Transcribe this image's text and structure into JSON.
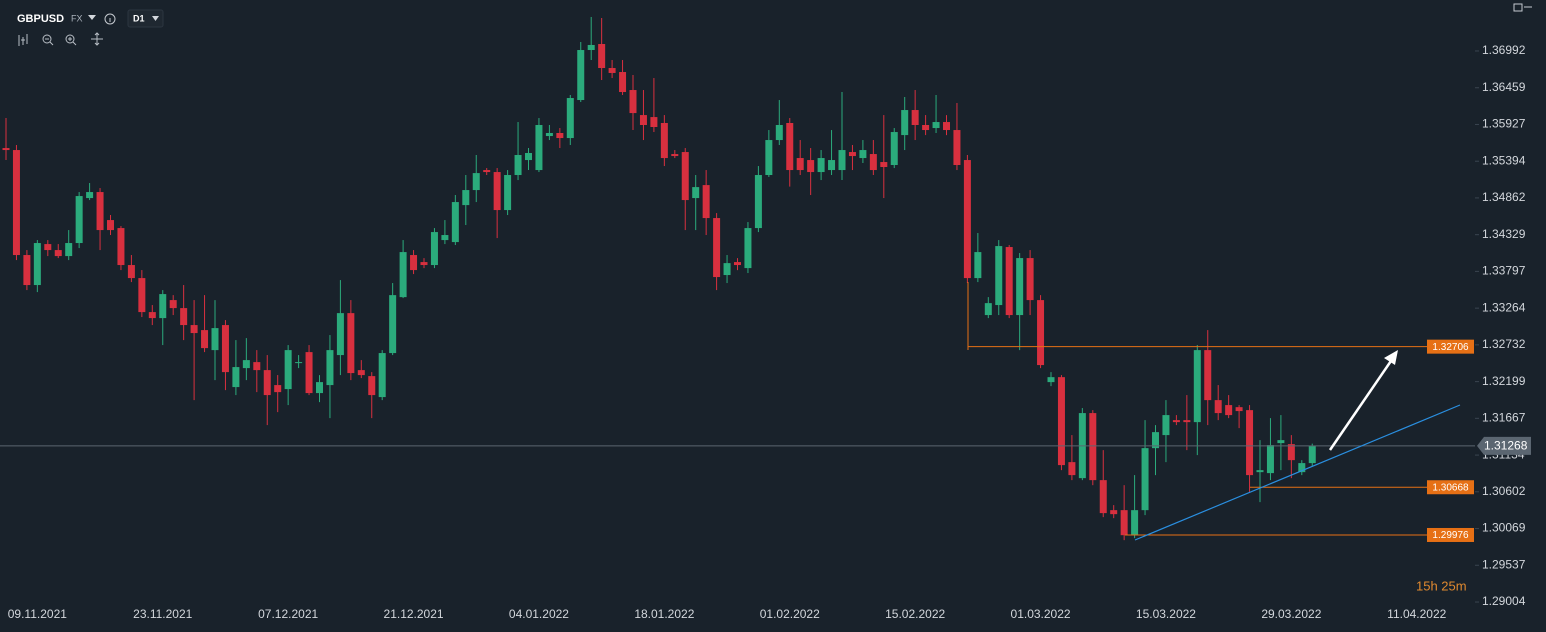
{
  "header": {
    "symbol": "GBPUSD",
    "market": "FX",
    "timeframe": "D1"
  },
  "chart_data": {
    "type": "candlestick",
    "categories": [
      null,
      null,
      null,
      "09.11.2021",
      null,
      null,
      null,
      null,
      null,
      null,
      null,
      null,
      null,
      null,
      null,
      "23.11.2021",
      null,
      null,
      null,
      null,
      null,
      null,
      null,
      null,
      null,
      null,
      null,
      "07.12.2021",
      null,
      null,
      null,
      null,
      null,
      null,
      null,
      null,
      null,
      null,
      null,
      "21.12.2021",
      null,
      null,
      null,
      null,
      null,
      null,
      null,
      null,
      null,
      null,
      null,
      "04.01.2022",
      null,
      null,
      null,
      null,
      null,
      null,
      null,
      null,
      null,
      null,
      null,
      "18.01.2022",
      null,
      null,
      null,
      null,
      null,
      null,
      null,
      null,
      null,
      null,
      null,
      "01.02.2022",
      null,
      null,
      null,
      null,
      null,
      null,
      null,
      null,
      null,
      null,
      null,
      "15.02.2022",
      null,
      null,
      null,
      null,
      null,
      null,
      null,
      null,
      null,
      null,
      null,
      "01.03.2022",
      null,
      null,
      null,
      null,
      null,
      null,
      null,
      null,
      null,
      null,
      null,
      "15.03.2022",
      null,
      null,
      null,
      null,
      null,
      null,
      null,
      null,
      null,
      null,
      null,
      "29.03.2022",
      null,
      null,
      null,
      null,
      null,
      null,
      null,
      null,
      null,
      null,
      null,
      "11.04.2022"
    ],
    "open": [
      1.35585,
      1.35556,
      1.34034,
      1.33599,
      1.34193,
      1.34106,
      1.34019,
      1.34208,
      1.3486,
      1.34947,
      1.34541,
      1.34425,
      1.33889,
      1.337,
      1.33207,
      1.3312,
      1.33381,
      1.33265,
      1.33019,
      1.32946,
      1.32656,
      1.33019,
      1.3212,
      1.32395,
      1.32482,
      1.32366,
      1.32149,
      1.32091,
      1.32468,
      1.32627,
      1.32033,
      1.32149,
      1.32584,
      1.33192,
      1.32366,
      1.32279,
      1.31975,
      1.32613,
      1.33424,
      1.34034,
      1.33932,
      1.33889,
      1.34251,
      1.34222,
      1.34758,
      1.34976,
      1.35266,
      1.35237,
      1.34686,
      1.35194,
      1.35411,
      1.35266,
      1.35759,
      1.35803,
      1.3573,
      1.36281,
      1.37006,
      1.37093,
      1.36745,
      1.36687,
      1.36426,
      1.36063,
      1.36034,
      1.35948,
      1.35498,
      1.35527,
      1.3486,
      1.35048,
      1.3457,
      1.33744,
      1.33932,
      1.33845,
      1.34425,
      1.35194,
      1.35701,
      1.35948,
      1.3544,
      1.35411,
      1.35237,
      1.35266,
      1.35266,
      1.35527,
      1.3544,
      1.35498,
      1.35382,
      1.35339,
      1.35773,
      1.36136,
      1.35919,
      1.35875,
      1.35962,
      1.35846,
      1.35411,
      1.337,
      1.33164,
      1.33309,
      1.3415,
      1.33164,
      1.3399,
      1.33381,
      1.32192,
      1.32264,
      1.31032,
      1.308,
      1.31743,
      1.30771,
      1.30336,
      1.30336,
      1.29973,
      1.30336,
      1.31235,
      1.31424,
      1.31641,
      1.31641,
      1.31612,
      1.32656,
      1.31931,
      1.31859,
      1.31829,
      1.31786,
      1.30887,
      1.30873,
      1.31308,
      1.31293,
      1.30887,
      1.31018,
      null,
      null,
      null,
      null,
      null,
      null,
      null,
      null,
      null,
      null
    ],
    "high": [
      1.3602,
      1.35629,
      1.34106,
      1.34251,
      1.34251,
      1.34193,
      1.34396,
      1.34947,
      1.35078,
      1.35005,
      1.34614,
      1.34454,
      1.34034,
      1.33816,
      1.33309,
      1.33526,
      1.33453,
      1.33599,
      1.33381,
      1.33453,
      1.33381,
      1.33091,
      1.32801,
      1.3283,
      1.32656,
      1.32584,
      1.32294,
      1.32729,
      1.32584,
      1.32729,
      1.32294,
      1.32874,
      1.33671,
      1.33381,
      1.32511,
      1.32337,
      1.32656,
      1.33628,
      1.34251,
      1.34106,
      1.3399,
      1.34425,
      1.34541,
      1.34904,
      1.35194,
      1.35484,
      1.35295,
      1.35295,
      1.35266,
      1.35962,
      1.35585,
      1.3602,
      1.35919,
      1.35875,
      1.36354,
      1.37122,
      1.37485,
      1.3747,
      1.36861,
      1.36861,
      1.36644,
      1.36426,
      1.366,
      1.36063,
      1.35556,
      1.35585,
      1.35194,
      1.35266,
      1.34642,
      1.34034,
      1.3399,
      1.34512,
      1.35324,
      1.35846,
      1.36281,
      1.3602,
      1.35701,
      1.35585,
      1.35556,
      1.35846,
      1.36397,
      1.35629,
      1.35701,
      1.35701,
      1.36063,
      1.35875,
      1.36325,
      1.36426,
      1.36063,
      1.36354,
      1.36063,
      1.36238,
      1.35484,
      1.34353,
      1.33424,
      1.34251,
      1.34179,
      1.34063,
      1.34106,
      1.33453,
      1.32337,
      1.32294,
      1.31424,
      1.31816,
      1.31786,
      1.31206,
      1.30409,
      1.30698,
      1.30844,
      1.31641,
      1.31569,
      1.31931,
      1.31714,
      1.32004,
      1.32729,
      1.32946,
      1.32149,
      1.32004,
      1.31859,
      1.31859,
      1.31351,
      1.3167,
      1.31714,
      1.31424,
      1.31061,
      1.313,
      null,
      null,
      null,
      null,
      null,
      null,
      null,
      null,
      null,
      null
    ],
    "low": [
      1.35411,
      1.33961,
      1.33526,
      1.33497,
      1.34019,
      1.3399,
      1.33961,
      1.34135,
      1.34831,
      1.34106,
      1.34324,
      1.33816,
      1.33642,
      1.33135,
      1.33019,
      1.32729,
      1.33164,
      1.32801,
      1.31931,
      1.32627,
      1.32221,
      1.32076,
      1.32004,
      1.32221,
      1.32047,
      1.31569,
      1.31757,
      1.31859,
      1.32395,
      1.32004,
      1.31902,
      1.3167,
      1.32294,
      1.32221,
      1.3225,
      1.3167,
      1.31931,
      1.32584,
      1.3341,
      1.33758,
      1.33845,
      1.33845,
      1.34193,
      1.34179,
      1.34469,
      1.34802,
      1.35194,
      1.3428,
      1.34614,
      1.35121,
      1.35266,
      1.35237,
      1.35701,
      1.35585,
      1.35629,
      1.36252,
      1.36861,
      1.36571,
      1.366,
      1.36354,
      1.35846,
      1.35701,
      1.35817,
      1.35324,
      1.3544,
      1.34396,
      1.34396,
      1.34324,
      1.33526,
      1.33628,
      1.33816,
      1.33773,
      1.34367,
      1.35165,
      1.35629,
      1.35026,
      1.35194,
      1.34904,
      1.35121,
      1.35194,
      1.35121,
      1.35266,
      1.35368,
      1.35194,
      1.3486,
      1.35295,
      1.35556,
      1.35701,
      1.35773,
      1.35803,
      1.35773,
      1.35266,
      1.33628,
      1.33642,
      1.3312,
      1.33164,
      1.3312,
      1.32656,
      1.33164,
      1.32395,
      1.32134,
      1.30916,
      1.30771,
      1.30771,
      1.30698,
      1.30235,
      1.3022,
      1.29901,
      1.2993,
      1.30264,
      1.30844,
      1.31032,
      1.31569,
      1.31206,
      1.31134,
      1.31569,
      1.31641,
      1.3167,
      1.31525,
      1.30597,
      1.30452,
      1.30771,
      1.30916,
      1.308,
      1.30844,
      1.30975,
      null,
      null,
      null,
      null,
      null,
      null,
      null,
      null,
      null,
      null
    ],
    "close": [
      1.35556,
      1.34034,
      1.33599,
      1.34208,
      1.34106,
      1.34019,
      1.34208,
      1.34889,
      1.34947,
      1.34396,
      1.34396,
      1.33889,
      1.337,
      1.33207,
      1.3312,
      1.33468,
      1.33265,
      1.33019,
      1.32903,
      1.32685,
      1.32975,
      1.32337,
      1.3241,
      1.32511,
      1.32366,
      1.32004,
      1.32047,
      1.32656,
      1.32482,
      1.32033,
      1.32192,
      1.32656,
      1.33192,
      1.32323,
      1.32294,
      1.32004,
      1.32613,
      1.33453,
      1.34077,
      1.33816,
      1.33889,
      1.34367,
      1.34324,
      1.34802,
      1.34976,
      1.35222,
      1.35237,
      1.34686,
      1.35194,
      1.35484,
      1.35513,
      1.35919,
      1.35803,
      1.3573,
      1.3631,
      1.37006,
      1.37079,
      1.36745,
      1.36673,
      1.36397,
      1.36092,
      1.35919,
      1.3589,
      1.3544,
      1.35469,
      1.34831,
      1.35019,
      1.3457,
      1.33715,
      1.33917,
      1.33889,
      1.34425,
      1.35194,
      1.35701,
      1.35919,
      1.35266,
      1.35266,
      1.35237,
      1.3544,
      1.35411,
      1.35556,
      1.35469,
      1.35556,
      1.35266,
      1.3531,
      1.35817,
      1.36136,
      1.35919,
      1.35846,
      1.35962,
      1.35846,
      1.35339,
      1.337,
      1.34077,
      1.33337,
      1.34164,
      1.33164,
      1.3399,
      1.33381,
      1.32439,
      1.32264,
      1.30989,
      1.30844,
      1.31743,
      1.30771,
      1.30293,
      1.30278,
      1.29973,
      1.30336,
      1.31235,
      1.31467,
      1.31714,
      1.31612,
      1.31612,
      1.32656,
      1.31931,
      1.31743,
      1.31714,
      1.31772,
      1.30844,
      1.30916,
      1.31279,
      1.31351,
      1.31061,
      1.31018,
      1.31268,
      null,
      null,
      null,
      null,
      null,
      null,
      null,
      null,
      null,
      null
    ],
    "up_color": "#2bab7c",
    "down_color": "#d8303f",
    "levels": [
      1.32706,
      1.30668,
      1.29976
    ],
    "level_color": "#e67015",
    "ylim": [
      1.28961,
      1.37731
    ],
    "yticks": [
      1.29004,
      1.29537,
      1.30069,
      1.30602,
      1.31134,
      1.31667,
      1.32199,
      1.32732,
      1.33264,
      1.33797,
      1.34329,
      1.34862,
      1.35394,
      1.35927,
      1.36459,
      1.36992
    ],
    "timer": "15h 25m"
  }
}
